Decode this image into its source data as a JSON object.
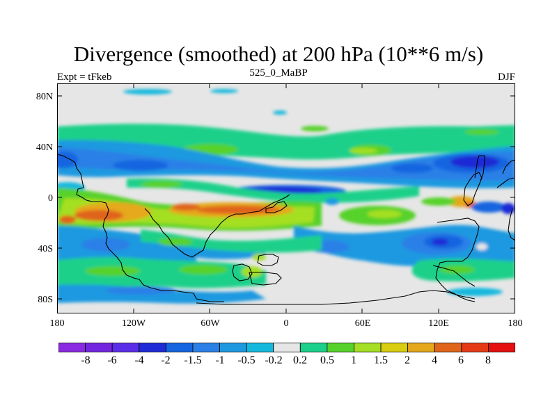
{
  "title": "Divergence (smoothed) at 200 hPa (10**6 m/s)",
  "left_subtitle": "Expt = tFkeb",
  "center_subtitle": "525_0_MaBP",
  "right_subtitle": "DJF",
  "lat_labels": [
    "80N",
    "40N",
    "0",
    "40S",
    "80S"
  ],
  "lon_labels": [
    "180",
    "120W",
    "60W",
    "0",
    "60E",
    "120E",
    "180"
  ],
  "colorbar": {
    "colors": [
      "#8a2be2",
      "#7326e0",
      "#5a2ee8",
      "#1e2bd6",
      "#1565e0",
      "#2a80e6",
      "#1e99e0",
      "#15b8dd",
      "#e6e6e6",
      "#1bd08a",
      "#57d22a",
      "#a4df24",
      "#d9cd10",
      "#e6a81b",
      "#e0641a",
      "#e63a16",
      "#e60f0f"
    ],
    "labels": [
      "-8",
      "-6",
      "-4",
      "-2",
      "-1.5",
      "-1",
      "-0.5",
      "-0.2",
      "0.2",
      "0.5",
      "1",
      "1.5",
      "2",
      "4",
      "6",
      "8"
    ]
  },
  "palette": {
    "background": "#e6e6e6",
    "pale_blue": "#15b8dd",
    "blue": "#1e99e0",
    "mid_blue": "#2a80e6",
    "dark_blue": "#1565e0",
    "navy": "#1e2bd6",
    "green": "#1bd08a",
    "lime": "#57d22a",
    "yellowgreen": "#a4df24",
    "yellow": "#d9cd10",
    "orange": "#e6a81b",
    "red_orange": "#e0641a",
    "red": "#e63a16"
  }
}
